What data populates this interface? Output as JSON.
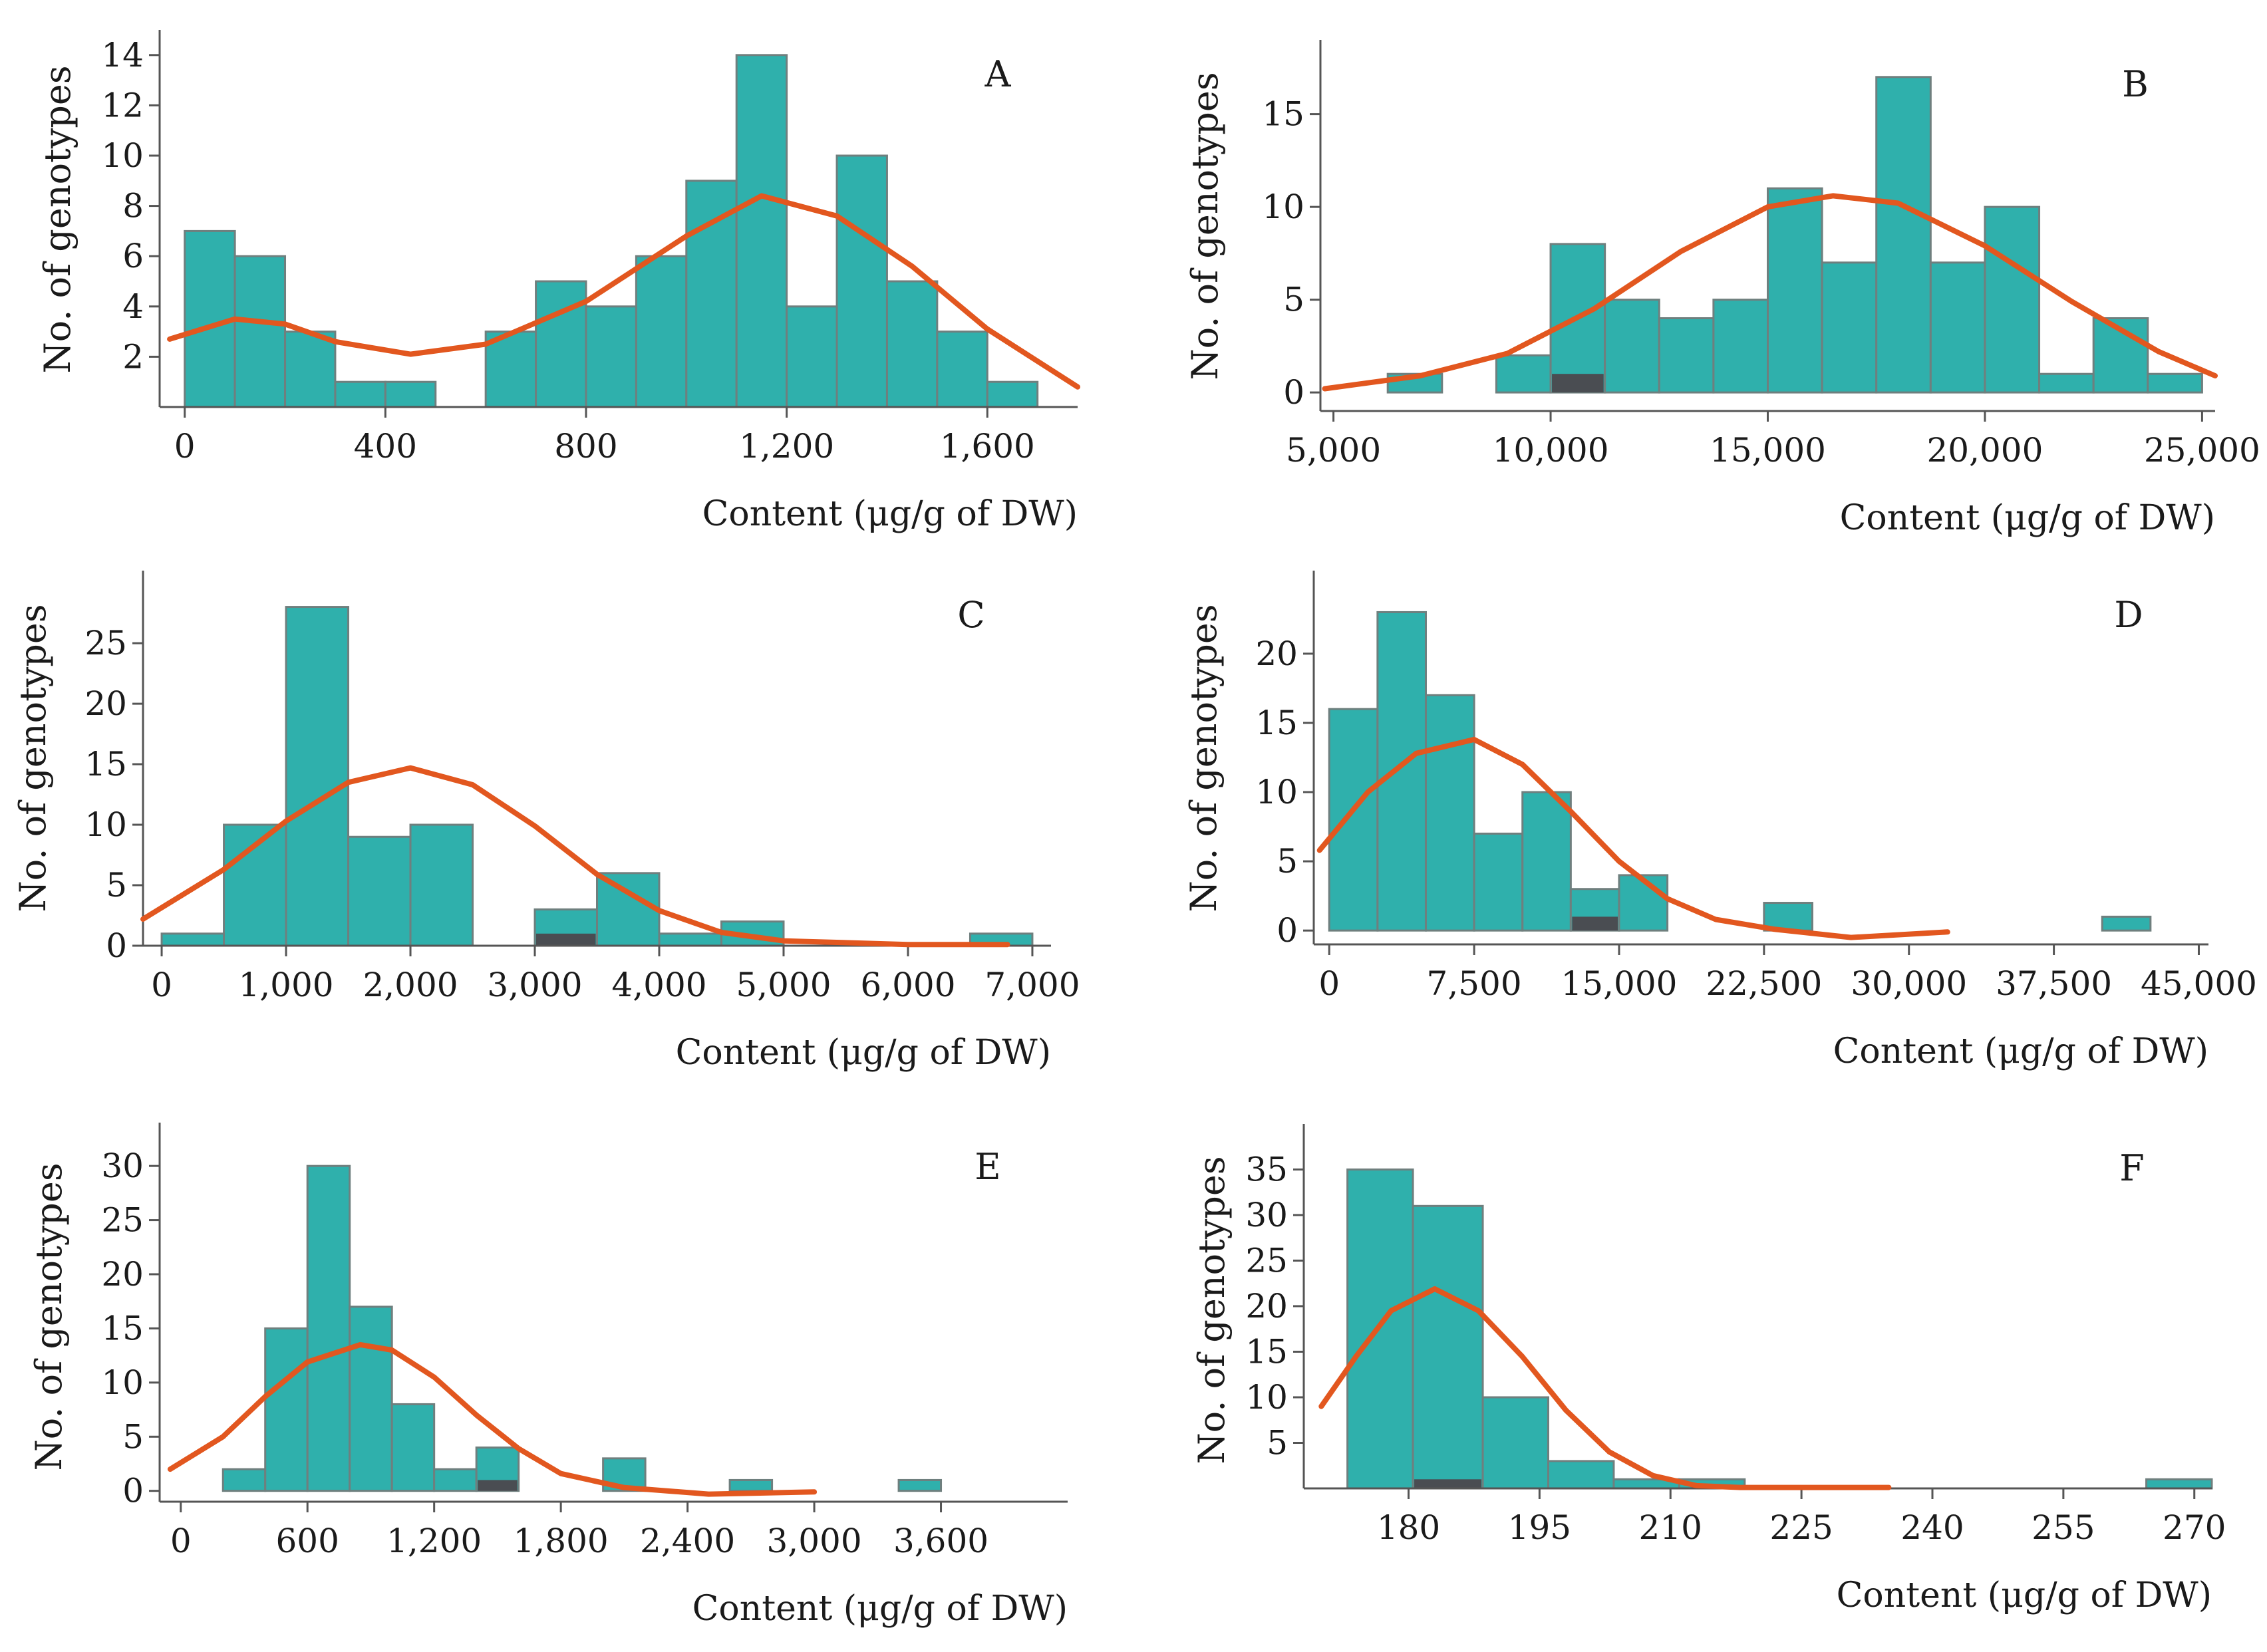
{
  "colors": {
    "bar": "#2fb0ac",
    "bar_edge": "#6f7f7e",
    "curve": "#e2571f",
    "highlight": "#4a4d52"
  },
  "chart_data": [
    {
      "type": "bar",
      "panel": "A",
      "title": "",
      "xlabel": "Content (μg/g of DW)",
      "ylabel": "No. of genotypes",
      "xlim": [
        -50,
        1780
      ],
      "ylim": [
        0,
        15
      ],
      "xticks": [
        0,
        400,
        800,
        1200,
        1600
      ],
      "xtick_labels": [
        "0",
        "400",
        "800",
        "1,200",
        "1,600"
      ],
      "yticks": [
        2,
        4,
        6,
        8,
        10,
        12,
        14
      ],
      "ytick_labels": [
        "2",
        "4",
        "6",
        "8",
        "10",
        "12",
        "14"
      ],
      "bins": [
        [
          0,
          100,
          7
        ],
        [
          100,
          200,
          6
        ],
        [
          200,
          300,
          3
        ],
        [
          300,
          400,
          1
        ],
        [
          400,
          500,
          1
        ],
        [
          600,
          700,
          3
        ],
        [
          700,
          800,
          5
        ],
        [
          800,
          900,
          4
        ],
        [
          900,
          1000,
          6
        ],
        [
          1000,
          1100,
          9
        ],
        [
          1100,
          1200,
          14
        ],
        [
          1200,
          1300,
          4
        ],
        [
          1300,
          1400,
          10
        ],
        [
          1400,
          1500,
          5
        ],
        [
          1500,
          1600,
          3
        ],
        [
          1600,
          1700,
          1
        ]
      ],
      "highlight_bins": [],
      "fit_curve": [
        [
          -30,
          2.7
        ],
        [
          100,
          3.5
        ],
        [
          200,
          3.3
        ],
        [
          300,
          2.6
        ],
        [
          450,
          2.1
        ],
        [
          600,
          2.5
        ],
        [
          800,
          4.2
        ],
        [
          1000,
          6.8
        ],
        [
          1150,
          8.4
        ],
        [
          1300,
          7.6
        ],
        [
          1450,
          5.6
        ],
        [
          1600,
          3.1
        ],
        [
          1780,
          0.8
        ]
      ]
    },
    {
      "type": "bar",
      "panel": "B",
      "title": "",
      "xlabel": "Content (μg/g of DW)",
      "ylabel": "No. of genotypes",
      "xlim": [
        4700,
        25300
      ],
      "ylim": [
        -1,
        19
      ],
      "xticks": [
        5000,
        10000,
        15000,
        20000,
        25000
      ],
      "xtick_labels": [
        "5,000",
        "10,000",
        "15,000",
        "20,000",
        "25,000"
      ],
      "yticks": [
        0,
        5,
        10,
        15
      ],
      "ytick_labels": [
        "0",
        "5",
        "10",
        "15"
      ],
      "bins": [
        [
          6250,
          7500,
          1
        ],
        [
          8750,
          10000,
          2
        ],
        [
          10000,
          11250,
          8
        ],
        [
          11250,
          12500,
          5
        ],
        [
          12500,
          13750,
          4
        ],
        [
          13750,
          15000,
          5
        ],
        [
          15000,
          16250,
          11
        ],
        [
          16250,
          17500,
          7
        ],
        [
          17500,
          18750,
          17
        ],
        [
          18750,
          20000,
          7
        ],
        [
          20000,
          21250,
          10
        ],
        [
          21250,
          22500,
          1
        ],
        [
          22500,
          23750,
          4
        ],
        [
          23750,
          25000,
          1
        ]
      ],
      "highlight_bins": [
        [
          10000,
          11250,
          1
        ]
      ],
      "fit_curve": [
        [
          4800,
          0.2
        ],
        [
          7000,
          0.9
        ],
        [
          9000,
          2.1
        ],
        [
          11000,
          4.5
        ],
        [
          13000,
          7.6
        ],
        [
          15000,
          10.0
        ],
        [
          16500,
          10.6
        ],
        [
          18000,
          10.2
        ],
        [
          20000,
          7.9
        ],
        [
          22000,
          4.9
        ],
        [
          24000,
          2.2
        ],
        [
          25300,
          0.9
        ]
      ]
    },
    {
      "type": "bar",
      "panel": "C",
      "title": "",
      "xlabel": "Content (μg/g of DW)",
      "ylabel": "No. of genotypes",
      "xlim": [
        -150,
        7150
      ],
      "ylim": [
        0,
        31
      ],
      "xticks": [
        0,
        1000,
        2000,
        3000,
        4000,
        5000,
        6000,
        7000
      ],
      "xtick_labels": [
        "0",
        "1,000",
        "2,000",
        "3,000",
        "4,000",
        "5,000",
        "6,000",
        "7,000"
      ],
      "yticks": [
        0,
        5,
        10,
        15,
        20,
        25
      ],
      "ytick_labels": [
        "0",
        "5",
        "10",
        "15",
        "20",
        "25"
      ],
      "bins": [
        [
          0,
          500,
          1
        ],
        [
          500,
          1000,
          10
        ],
        [
          1000,
          1500,
          28
        ],
        [
          1500,
          2000,
          9
        ],
        [
          2000,
          2500,
          10
        ],
        [
          3000,
          3500,
          3
        ],
        [
          3500,
          4000,
          6
        ],
        [
          4000,
          4500,
          1
        ],
        [
          4500,
          5000,
          2
        ],
        [
          6500,
          7000,
          1
        ]
      ],
      "highlight_bins": [
        [
          3000,
          3500,
          1
        ]
      ],
      "fit_curve": [
        [
          -150,
          2.2
        ],
        [
          500,
          6.3
        ],
        [
          1000,
          10.3
        ],
        [
          1500,
          13.5
        ],
        [
          2000,
          14.7
        ],
        [
          2500,
          13.3
        ],
        [
          3000,
          9.9
        ],
        [
          3500,
          5.9
        ],
        [
          4000,
          2.9
        ],
        [
          4500,
          1.1
        ],
        [
          5000,
          0.4
        ],
        [
          6000,
          0.1
        ],
        [
          6800,
          0.1
        ]
      ]
    },
    {
      "type": "bar",
      "panel": "D",
      "title": "",
      "xlabel": "Content (μg/g of DW)",
      "ylabel": "No. of genotypes",
      "xlim": [
        -800,
        45500
      ],
      "ylim": [
        -1,
        26
      ],
      "xticks": [
        0,
        7500,
        15000,
        22500,
        30000,
        37500,
        45000
      ],
      "xtick_labels": [
        "0",
        "7,500",
        "15,000",
        "22,500",
        "30,000",
        "37,500",
        "45,000"
      ],
      "yticks": [
        0,
        5,
        10,
        15,
        20
      ],
      "ytick_labels": [
        "0",
        "5",
        "10",
        "15",
        "20"
      ],
      "bins": [
        [
          0,
          2500,
          16
        ],
        [
          2500,
          5000,
          23
        ],
        [
          5000,
          7500,
          17
        ],
        [
          7500,
          10000,
          7
        ],
        [
          10000,
          12500,
          10
        ],
        [
          12500,
          15000,
          3
        ],
        [
          15000,
          17500,
          4
        ],
        [
          22500,
          25000,
          2
        ],
        [
          40000,
          42500,
          1
        ]
      ],
      "highlight_bins": [
        [
          12500,
          15000,
          1
        ]
      ],
      "fit_curve": [
        [
          -500,
          5.8
        ],
        [
          2000,
          10.0
        ],
        [
          4500,
          12.8
        ],
        [
          7500,
          13.8
        ],
        [
          10000,
          12.0
        ],
        [
          12500,
          8.6
        ],
        [
          15000,
          5.0
        ],
        [
          17500,
          2.3
        ],
        [
          20000,
          0.8
        ],
        [
          23000,
          0.1
        ],
        [
          27000,
          -0.5
        ],
        [
          32000,
          -0.1
        ]
      ]
    },
    {
      "type": "bar",
      "panel": "E",
      "title": "",
      "xlabel": "Content (μg/g of DW)",
      "ylabel": "No. of genotypes",
      "xlim": [
        -100,
        4200
      ],
      "ylim": [
        -1,
        34
      ],
      "xticks": [
        0,
        600,
        1200,
        1800,
        2400,
        3000,
        3600
      ],
      "xtick_labels": [
        "0",
        "600",
        "1,200",
        "1,800",
        "2,400",
        "3,000",
        "3,600"
      ],
      "yticks": [
        0,
        5,
        10,
        15,
        20,
        25,
        30
      ],
      "ytick_labels": [
        "0",
        "5",
        "10",
        "15",
        "20",
        "25",
        "30"
      ],
      "bins": [
        [
          200,
          400,
          2
        ],
        [
          400,
          600,
          15
        ],
        [
          600,
          800,
          30
        ],
        [
          800,
          1000,
          17
        ],
        [
          1000,
          1200,
          8
        ],
        [
          1200,
          1400,
          2
        ],
        [
          1400,
          1600,
          4
        ],
        [
          2000,
          2200,
          3
        ],
        [
          2600,
          2800,
          1
        ],
        [
          3400,
          3600,
          1
        ]
      ],
      "highlight_bins": [
        [
          1400,
          1600,
          1
        ]
      ],
      "fit_curve": [
        [
          -50,
          2.0
        ],
        [
          200,
          5.0
        ],
        [
          400,
          8.7
        ],
        [
          600,
          11.9
        ],
        [
          850,
          13.5
        ],
        [
          1000,
          13.0
        ],
        [
          1200,
          10.5
        ],
        [
          1400,
          7.0
        ],
        [
          1600,
          3.9
        ],
        [
          1800,
          1.6
        ],
        [
          2100,
          0.3
        ],
        [
          2500,
          -0.3
        ],
        [
          3000,
          -0.1
        ]
      ]
    },
    {
      "type": "bar",
      "panel": "F",
      "title": "",
      "xlabel": "Content (μg/g of DW)",
      "ylabel": "No. of genotypes",
      "xlim": [
        168,
        272
      ],
      "ylim": [
        0,
        40
      ],
      "xticks": [
        180,
        195,
        210,
        225,
        240,
        255,
        270
      ],
      "xtick_labels": [
        "180",
        "195",
        "210",
        "225",
        "240",
        "255",
        "270"
      ],
      "yticks": [
        5,
        10,
        15,
        20,
        25,
        30,
        35
      ],
      "ytick_labels": [
        "5",
        "10",
        "15",
        "20",
        "25",
        "30",
        "35"
      ],
      "bins": [
        [
          173,
          180.5,
          35
        ],
        [
          180.5,
          188.5,
          31
        ],
        [
          188.5,
          196,
          10
        ],
        [
          196,
          203.5,
          3
        ],
        [
          203.5,
          211,
          1
        ],
        [
          211,
          218.5,
          1
        ],
        [
          264.5,
          272,
          1
        ]
      ],
      "highlight_bins": [
        [
          180.5,
          188.5,
          1
        ]
      ],
      "fit_curve": [
        [
          170,
          9.0
        ],
        [
          174,
          14.5
        ],
        [
          178,
          19.5
        ],
        [
          183,
          21.9
        ],
        [
          188,
          19.5
        ],
        [
          193,
          14.5
        ],
        [
          198,
          8.6
        ],
        [
          203,
          4.0
        ],
        [
          208,
          1.4
        ],
        [
          213,
          0.3
        ],
        [
          218,
          0.1
        ],
        [
          235,
          0.1
        ]
      ]
    }
  ]
}
